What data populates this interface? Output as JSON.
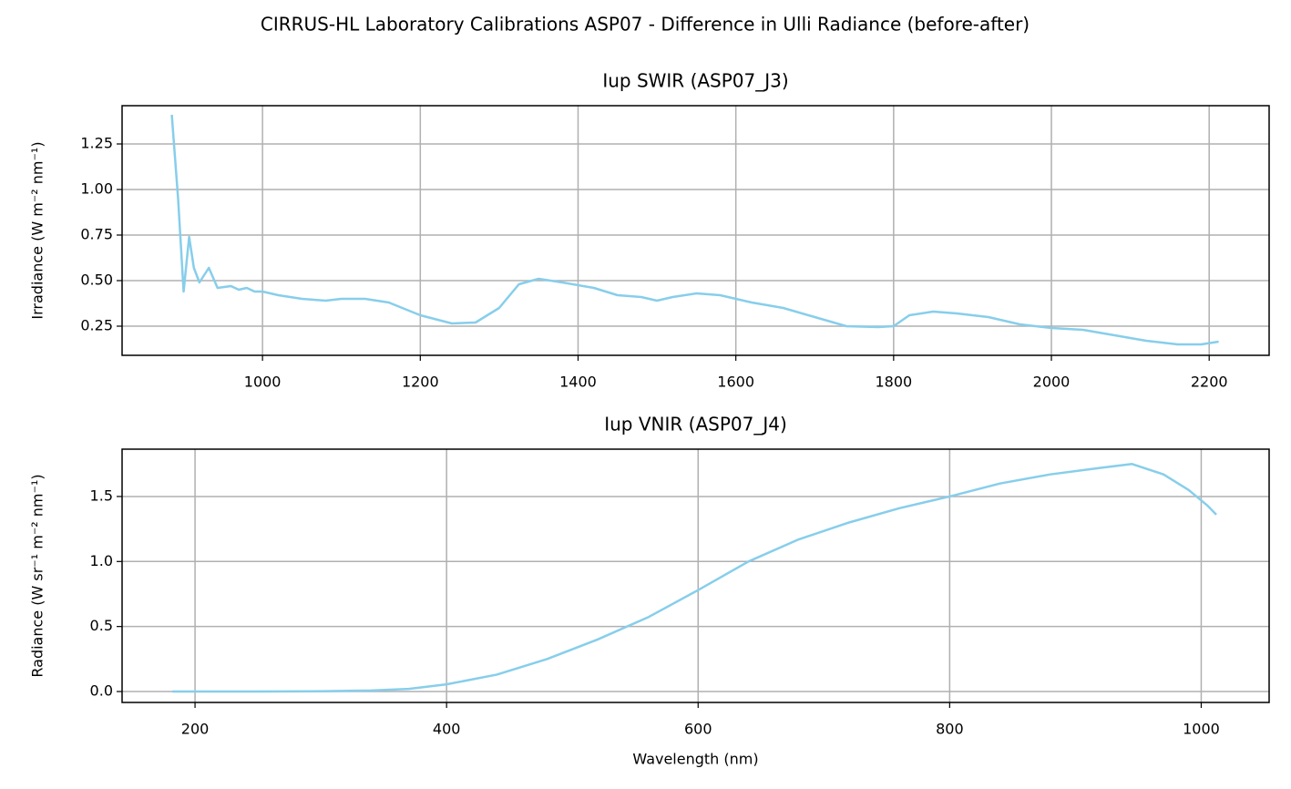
{
  "title": "CIRRUS-HL Laboratory Calibrations ASP07 - Difference in Ulli Radiance (before-after)",
  "chart_data": [
    {
      "type": "line",
      "title": "Iup SWIR (ASP07_J3)",
      "y_label": "Irradiance (W m⁻² nm⁻¹)",
      "grid": true,
      "x": [
        885,
        893,
        900,
        907,
        913,
        920,
        932,
        943,
        960,
        970,
        980,
        990,
        1000,
        1020,
        1050,
        1080,
        1100,
        1130,
        1160,
        1200,
        1240,
        1270,
        1300,
        1325,
        1350,
        1380,
        1420,
        1450,
        1480,
        1500,
        1520,
        1550,
        1580,
        1620,
        1660,
        1700,
        1740,
        1780,
        1800,
        1820,
        1850,
        1880,
        1920,
        1960,
        2000,
        2040,
        2080,
        2120,
        2160,
        2190,
        2212
      ],
      "series": [
        {
          "color": "#87ceeb",
          "values": [
            1.41,
            0.95,
            0.44,
            0.74,
            0.57,
            0.49,
            0.57,
            0.46,
            0.47,
            0.45,
            0.46,
            0.44,
            0.44,
            0.42,
            0.4,
            0.39,
            0.4,
            0.4,
            0.38,
            0.31,
            0.265,
            0.27,
            0.35,
            0.48,
            0.51,
            0.49,
            0.46,
            0.42,
            0.41,
            0.39,
            0.41,
            0.43,
            0.42,
            0.38,
            0.35,
            0.3,
            0.25,
            0.245,
            0.25,
            0.31,
            0.33,
            0.32,
            0.3,
            0.26,
            0.24,
            0.23,
            0.2,
            0.17,
            0.15,
            0.15,
            0.165
          ]
        }
      ],
      "xlim": [
        822,
        2276
      ],
      "xticks": [
        1000,
        1200,
        1400,
        1600,
        1800,
        2000,
        2200
      ],
      "ylim": [
        0.09,
        1.46
      ],
      "yticks": [
        0.25,
        {
          "value": 0.5,
          "label": "0.50"
        },
        0.75,
        {
          "value": 1,
          "label": "1.00"
        },
        1.25
      ]
    },
    {
      "type": "line",
      "title": "Iup VNIR (ASP07_J4)",
      "x_label": "Wavelength (nm)",
      "y_label": "Radiance (W sr⁻¹ m⁻² nm⁻¹)",
      "grid": true,
      "x": [
        182,
        250,
        300,
        340,
        370,
        400,
        440,
        480,
        520,
        560,
        600,
        640,
        680,
        720,
        760,
        800,
        840,
        880,
        920,
        945,
        970,
        990,
        1005,
        1012
      ],
      "series": [
        {
          "color": "#87ceeb",
          "values": [
            0,
            0,
            0.002,
            0.008,
            0.02,
            0.055,
            0.13,
            0.25,
            0.4,
            0.57,
            0.78,
            1.0,
            1.17,
            1.3,
            1.41,
            1.5,
            1.6,
            1.67,
            1.72,
            1.75,
            1.67,
            1.55,
            1.43,
            1.36
          ]
        }
      ],
      "xlim": [
        142,
        1054
      ],
      "xticks": [
        200,
        400,
        600,
        800,
        1000
      ],
      "ylim": [
        -0.084,
        1.864
      ],
      "yticks": [
        {
          "value": 0,
          "label": "0.0"
        },
        0.5,
        {
          "value": 1,
          "label": "1.0"
        },
        1.5
      ]
    }
  ]
}
